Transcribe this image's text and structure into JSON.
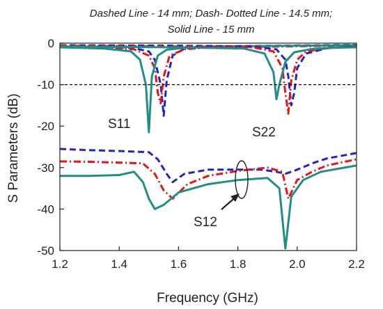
{
  "chart_data": {
    "type": "line",
    "title_lines": [
      "Dashed Line - 14 mm; Dash- Dotted Line - 14.5 mm;",
      "Solid Line - 15 mm"
    ],
    "xlabel": "Frequency (GHz)",
    "ylabel": "S Parameters (dB)",
    "xlim": [
      1.2,
      2.2
    ],
    "ylim": [
      -50,
      0
    ],
    "xticks": [
      "1.2",
      "1.4",
      "1.6",
      "1.8",
      "2.0",
      "2.2"
    ],
    "yticks": [
      "0",
      "-10",
      "-20",
      "-30",
      "-40",
      "-50"
    ],
    "reference_line_y": -10,
    "annotations": [
      "S11",
      "S22",
      "S12"
    ],
    "colors": {
      "dashed": "#2222cc",
      "dashdot": "#ee1111",
      "solid": "#1f8f86",
      "reference": "#000000"
    },
    "series": [
      {
        "label": "S11",
        "style": "dashed",
        "color": "#2222cc",
        "x": [
          1.2,
          1.35,
          1.45,
          1.5,
          1.52,
          1.54,
          1.55,
          1.56,
          1.58,
          1.62,
          1.7,
          2.2
        ],
        "y": [
          -0.6,
          -0.8,
          -1.2,
          -2.0,
          -4.0,
          -10.0,
          -17.5,
          -9.0,
          -3.0,
          -1.3,
          -0.8,
          -0.4
        ]
      },
      {
        "label": "S11",
        "style": "dashdot",
        "color": "#ee1111",
        "x": [
          1.2,
          1.35,
          1.45,
          1.5,
          1.52,
          1.53,
          1.54,
          1.55,
          1.57,
          1.62,
          1.7,
          2.2
        ],
        "y": [
          -0.8,
          -1.0,
          -1.5,
          -3.0,
          -6.0,
          -12.0,
          -14.5,
          -8.0,
          -3.0,
          -1.5,
          -1.0,
          -0.6
        ]
      },
      {
        "label": "S11",
        "style": "solid",
        "color": "#1f8f86",
        "x": [
          1.2,
          1.35,
          1.44,
          1.47,
          1.49,
          1.5,
          1.51,
          1.53,
          1.56,
          1.62,
          1.7,
          2.2
        ],
        "y": [
          -1.0,
          -1.3,
          -2.0,
          -4.0,
          -10.0,
          -21.5,
          -8.0,
          -3.0,
          -1.6,
          -1.1,
          -0.8,
          -0.5
        ]
      },
      {
        "label": "S22",
        "style": "dashed",
        "color": "#2222cc",
        "x": [
          1.2,
          1.6,
          1.85,
          1.93,
          1.96,
          1.97,
          1.98,
          1.99,
          2.0,
          2.03,
          2.1,
          2.2
        ],
        "y": [
          -0.5,
          -0.6,
          -0.8,
          -1.5,
          -4.0,
          -8.0,
          -15.0,
          -12.0,
          -6.0,
          -2.5,
          -1.2,
          -0.8
        ]
      },
      {
        "label": "S22",
        "style": "dashdot",
        "color": "#ee1111",
        "x": [
          1.2,
          1.6,
          1.85,
          1.92,
          1.95,
          1.96,
          1.97,
          1.98,
          2.0,
          2.03,
          2.1,
          2.2
        ],
        "y": [
          -0.6,
          -0.8,
          -1.0,
          -2.0,
          -6.0,
          -12.0,
          -17.0,
          -9.0,
          -4.0,
          -2.0,
          -1.2,
          -0.9
        ]
      },
      {
        "label": "S22",
        "style": "solid",
        "color": "#1f8f86",
        "x": [
          1.2,
          1.6,
          1.82,
          1.89,
          1.92,
          1.93,
          1.94,
          1.96,
          1.99,
          2.05,
          2.12,
          2.2
        ],
        "y": [
          -0.8,
          -1.0,
          -1.3,
          -2.5,
          -7.0,
          -13.5,
          -10.0,
          -4.5,
          -2.2,
          -1.4,
          -1.1,
          -1.0
        ]
      },
      {
        "label": "S12",
        "style": "dashed",
        "color": "#2222cc",
        "x": [
          1.2,
          1.3,
          1.4,
          1.5,
          1.53,
          1.56,
          1.58,
          1.62,
          1.7,
          1.8,
          1.88,
          1.93,
          1.96,
          2.0,
          2.05,
          2.1,
          2.2
        ],
        "y": [
          -25.5,
          -25.8,
          -26.0,
          -26.3,
          -28.0,
          -31.5,
          -33.5,
          -31.5,
          -30.5,
          -30.5,
          -30.5,
          -31.0,
          -31.5,
          -30.5,
          -29.0,
          -27.8,
          -26.5
        ]
      },
      {
        "label": "S12",
        "style": "dashdot",
        "color": "#ee1111",
        "x": [
          1.2,
          1.3,
          1.4,
          1.48,
          1.52,
          1.55,
          1.58,
          1.63,
          1.7,
          1.8,
          1.9,
          1.95,
          1.97,
          2.0,
          2.05,
          2.1,
          2.2
        ],
        "y": [
          -28.5,
          -28.6,
          -28.8,
          -29.0,
          -31.5,
          -35.5,
          -37.5,
          -34.0,
          -32.0,
          -30.8,
          -30.0,
          -31.0,
          -37.5,
          -33.0,
          -31.0,
          -29.5,
          -28.0
        ]
      },
      {
        "label": "S12",
        "style": "solid",
        "color": "#1f8f86",
        "x": [
          1.2,
          1.3,
          1.4,
          1.45,
          1.48,
          1.5,
          1.52,
          1.55,
          1.6,
          1.7,
          1.8,
          1.9,
          1.94,
          1.96,
          1.98,
          2.02,
          2.08,
          2.2
        ],
        "y": [
          -32.0,
          -32.0,
          -31.8,
          -31.0,
          -33.5,
          -37.5,
          -40.0,
          -39.0,
          -36.0,
          -34.0,
          -33.0,
          -32.5,
          -35.0,
          -49.5,
          -37.0,
          -33.0,
          -31.0,
          -29.5
        ]
      }
    ]
  }
}
